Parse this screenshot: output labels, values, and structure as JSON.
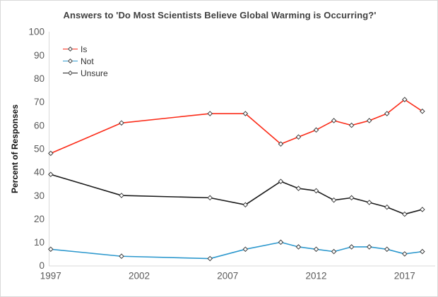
{
  "chart_data": {
    "type": "line",
    "title": "Answers to 'Do Most Scientists Believe Global Warming is Occurring?'",
    "xlabel": "",
    "ylabel": "Percent of Responses",
    "x": [
      1997,
      2001,
      2006,
      2008,
      2010,
      2011,
      2012,
      2013,
      2014,
      2015,
      2016,
      2017,
      2018
    ],
    "series": [
      {
        "name": "Is",
        "color": "#fb2b18",
        "values": [
          48,
          61,
          65,
          65,
          52,
          55,
          58,
          62,
          60,
          62,
          65,
          71,
          66
        ]
      },
      {
        "name": "Not",
        "color": "#2e99ce",
        "values": [
          7,
          4,
          3,
          7,
          10,
          8,
          7,
          6,
          8,
          8,
          7,
          5,
          6
        ]
      },
      {
        "name": "Unsure",
        "color": "#1b1b1b",
        "values": [
          39,
          30,
          29,
          26,
          36,
          33,
          32,
          28,
          29,
          27,
          25,
          22,
          24
        ]
      }
    ],
    "xticks": [
      1997,
      2002,
      2007,
      2012,
      2017
    ],
    "yticks": [
      0,
      10,
      20,
      30,
      40,
      50,
      60,
      70,
      80,
      90,
      100
    ],
    "xlim": [
      1997,
      2018.8
    ],
    "ylim": [
      0,
      100
    ],
    "grid": false,
    "legend_position": "top-left-inside",
    "marker": "diamond",
    "colors": {
      "axis_line": "#d9d9d9",
      "tick_label": "#595959",
      "title": "#404040",
      "marker_outline": "#3f3f3f",
      "marker_fill": "#ffffff",
      "border": "#d9d9d9"
    }
  }
}
